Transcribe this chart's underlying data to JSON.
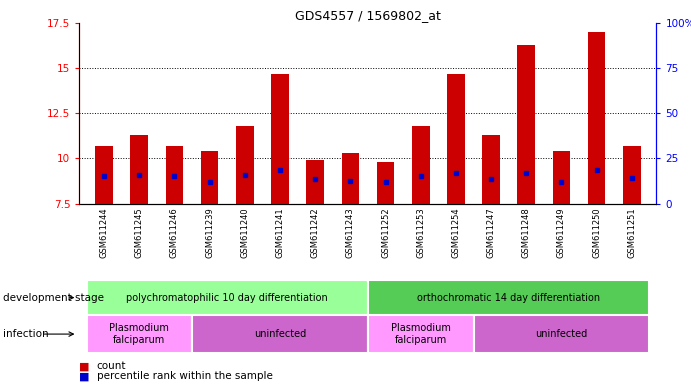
{
  "title": "GDS4557 / 1569802_at",
  "samples": [
    "GSM611244",
    "GSM611245",
    "GSM611246",
    "GSM611239",
    "GSM611240",
    "GSM611241",
    "GSM611242",
    "GSM611243",
    "GSM611252",
    "GSM611253",
    "GSM611254",
    "GSM611247",
    "GSM611248",
    "GSM611249",
    "GSM611250",
    "GSM611251"
  ],
  "counts": [
    10.7,
    11.3,
    10.7,
    10.4,
    11.8,
    14.7,
    9.9,
    10.3,
    9.8,
    11.8,
    14.7,
    11.3,
    16.3,
    10.4,
    17.0,
    10.7
  ],
  "percentile_ranks": [
    9.0,
    9.1,
    9.0,
    8.7,
    9.1,
    9.35,
    8.85,
    8.75,
    8.7,
    9.0,
    9.2,
    8.85,
    9.2,
    8.7,
    9.35,
    8.9
  ],
  "ymin": 7.5,
  "ymax": 17.5,
  "yticks": [
    7.5,
    10.0,
    12.5,
    15.0,
    17.5
  ],
  "right_yticks": [
    0,
    25,
    50,
    75,
    100
  ],
  "bar_color": "#CC0000",
  "dot_color": "#0000CC",
  "dev_stage_groups": [
    {
      "label": "polychromatophilic 10 day differentiation",
      "start": 0,
      "end": 7,
      "color": "#99FF99"
    },
    {
      "label": "orthochromatic 14 day differentiation",
      "start": 8,
      "end": 15,
      "color": "#55CC55"
    }
  ],
  "infection_groups": [
    {
      "label": "Plasmodium\nfalciparum",
      "start": 0,
      "end": 2,
      "color": "#FF99FF"
    },
    {
      "label": "uninfected",
      "start": 3,
      "end": 7,
      "color": "#CC66CC"
    },
    {
      "label": "Plasmodium\nfalciparum",
      "start": 8,
      "end": 10,
      "color": "#FF99FF"
    },
    {
      "label": "uninfected",
      "start": 11,
      "end": 15,
      "color": "#CC66CC"
    }
  ],
  "legend_items": [
    {
      "label": "count",
      "color": "#CC0000"
    },
    {
      "label": "percentile rank within the sample",
      "color": "#0000CC"
    }
  ],
  "xtick_bg_color": "#CCCCCC"
}
